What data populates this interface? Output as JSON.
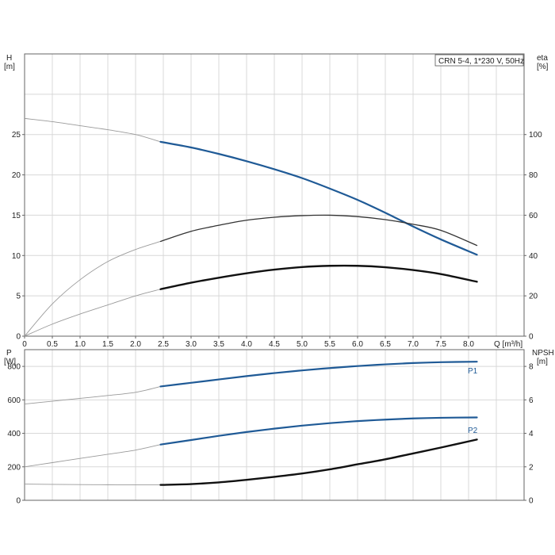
{
  "chart_data": [
    {
      "type": "line",
      "legend": "CRN 5-4, 1*230 V, 50Hz",
      "xlabel": "Q [m³/h]",
      "xlim": [
        0,
        9
      ],
      "x_ticks": [
        "0",
        "0.5",
        "1.0",
        "1.5",
        "2.0",
        "2.5",
        "3.0",
        "3.5",
        "4.0",
        "4.5",
        "5.0",
        "5.5",
        "6.0",
        "6.5",
        "7.0",
        "7.5",
        "8.0"
      ],
      "ylabel_left": "H [m]",
      "ylabel_left_name": "H",
      "ylabel_left_unit": "[m]",
      "ylim_left": [
        0,
        35
      ],
      "y_ticks_left": [
        "0",
        "5",
        "10",
        "15",
        "20",
        "25"
      ],
      "ylabel_right": "eta [%]",
      "ylabel_right_name": "eta",
      "ylabel_right_unit": "[%]",
      "ylim_right": [
        0,
        140
      ],
      "y_ticks_right": [
        "0",
        "20",
        "40",
        "60",
        "80",
        "100"
      ],
      "grid": true,
      "series": [
        {
          "axis": "left",
          "color": "#1f5a96",
          "x": [
            0,
            0.5,
            1.0,
            1.5,
            2.0,
            2.45,
            3.0,
            3.5,
            4.0,
            4.5,
            5.0,
            5.5,
            6.0,
            6.5,
            7.0,
            7.5,
            8.15
          ],
          "y": [
            27.0,
            26.6,
            26.1,
            25.6,
            25.0,
            24.1,
            23.4,
            22.6,
            21.7,
            20.7,
            19.6,
            18.3,
            16.9,
            15.3,
            13.6,
            12.0,
            10.1
          ],
          "solid_from": 2.45
        },
        {
          "axis": "right",
          "color": "#333333",
          "x": [
            0,
            0.5,
            1.0,
            1.5,
            2.0,
            2.45,
            3.0,
            3.5,
            4.0,
            4.5,
            5.0,
            5.5,
            6.0,
            6.5,
            7.0,
            7.5,
            8.15
          ],
          "y": [
            0,
            16,
            28,
            37,
            43,
            47,
            52,
            55,
            57.5,
            59,
            59.8,
            60,
            59.3,
            57.8,
            55.5,
            52.5,
            45
          ],
          "solid_from": 2.45
        },
        {
          "axis": "right",
          "color": "#111111",
          "x": [
            0,
            0.5,
            1.0,
            1.5,
            2.0,
            2.45,
            3.0,
            3.5,
            4.0,
            4.5,
            5.0,
            5.5,
            6.0,
            6.5,
            7.0,
            7.5,
            8.15
          ],
          "y": [
            0,
            6,
            11,
            15.5,
            20,
            23.3,
            26.5,
            29,
            31.2,
            33,
            34.3,
            34.9,
            34.9,
            34.2,
            32.8,
            30.8,
            27
          ],
          "solid_from": 2.45
        }
      ]
    },
    {
      "type": "line",
      "xlim": [
        0,
        9
      ],
      "ylabel_left": "P [W]",
      "ylabel_left_name": "P",
      "ylabel_left_unit": "[W]",
      "ylim_left": [
        0,
        900
      ],
      "y_ticks_left": [
        "0",
        "200",
        "400",
        "600",
        "800"
      ],
      "ylabel_right": "NPSH [m]",
      "ylabel_right_name": "NPSH",
      "ylabel_right_unit": "[m]",
      "ylim_right": [
        0,
        9
      ],
      "y_ticks_right": [
        "0",
        "2",
        "4",
        "6",
        "8"
      ],
      "grid": true,
      "series": [
        {
          "name": "P1",
          "axis": "left",
          "color": "#1f5a96",
          "x": [
            0,
            0.5,
            1.0,
            1.5,
            2.0,
            2.45,
            3.0,
            3.5,
            4.0,
            4.5,
            5.0,
            5.5,
            6.0,
            6.5,
            7.0,
            7.5,
            8.15
          ],
          "y": [
            575,
            592,
            609,
            626,
            645,
            680,
            702,
            722,
            742,
            760,
            776,
            790,
            802,
            812,
            820,
            825,
            828
          ],
          "solid_from": 2.45
        },
        {
          "name": "P2",
          "axis": "left",
          "color": "#1f5a96",
          "x": [
            0,
            0.5,
            1.0,
            1.5,
            2.0,
            2.45,
            3.0,
            3.5,
            4.0,
            4.5,
            5.0,
            5.5,
            6.0,
            6.5,
            7.0,
            7.5,
            8.15
          ],
          "y": [
            200,
            225,
            250,
            275,
            300,
            333,
            360,
            385,
            408,
            428,
            446,
            461,
            473,
            482,
            489,
            493,
            495
          ],
          "solid_from": 2.45
        },
        {
          "axis": "right",
          "color": "#111111",
          "x": [
            0,
            0.5,
            1.0,
            1.5,
            2.0,
            2.45,
            3.0,
            3.5,
            4.0,
            4.5,
            5.0,
            5.5,
            6.0,
            6.5,
            7.0,
            7.5,
            8.15
          ],
          "y": [
            0.97,
            0.95,
            0.94,
            0.93,
            0.92,
            0.92,
            0.97,
            1.07,
            1.22,
            1.4,
            1.6,
            1.85,
            2.15,
            2.45,
            2.8,
            3.15,
            3.63
          ],
          "solid_from": 2.45
        }
      ]
    }
  ]
}
